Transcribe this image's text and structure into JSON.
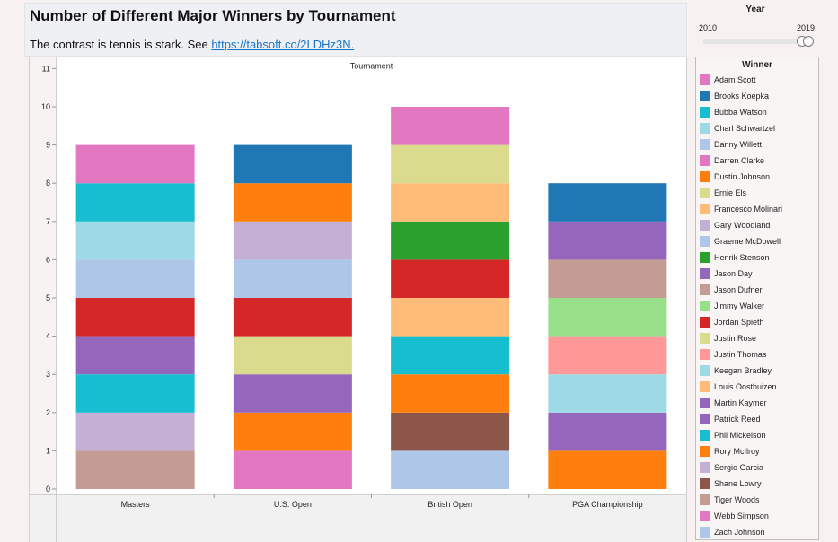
{
  "title": "Number of Different Major Winners by Tournament",
  "subtitle": {
    "text": "The contrast is tennis is stark. See ",
    "link": "https://tabsoft.co/2LDHz3N."
  },
  "year_filter": {
    "title": "Year",
    "min_label": "2010",
    "max_label": "2019",
    "range": [
      2010,
      2019
    ]
  },
  "legend": {
    "title": "Winner",
    "items": [
      {
        "name": "Adam Scott",
        "color": "#e377c2"
      },
      {
        "name": "Brooks Koepka",
        "color": "#1f77b4"
      },
      {
        "name": "Bubba Watson",
        "color": "#17becf"
      },
      {
        "name": "Charl Schwartzel",
        "color": "#9edae5"
      },
      {
        "name": "Danny Willett",
        "color": "#aec7e8"
      },
      {
        "name": "Darren Clarke",
        "color": "#e377c2"
      },
      {
        "name": "Dustin Johnson",
        "color": "#ff7f0e"
      },
      {
        "name": "Ernie Els",
        "color": "#dbdb8d"
      },
      {
        "name": "Francesco Molinari",
        "color": "#ffbb78"
      },
      {
        "name": "Gary Woodland",
        "color": "#c5b0d5"
      },
      {
        "name": "Graeme McDowell",
        "color": "#aec7e8"
      },
      {
        "name": "Henrik Stenson",
        "color": "#2ca02c"
      },
      {
        "name": "Jason Day",
        "color": "#9467bd"
      },
      {
        "name": "Jason Dufner",
        "color": "#c49c94"
      },
      {
        "name": "Jimmy Walker",
        "color": "#98df8a"
      },
      {
        "name": "Jordan Spieth",
        "color": "#d62728"
      },
      {
        "name": "Justin Rose",
        "color": "#dbdb8d"
      },
      {
        "name": "Justin Thomas",
        "color": "#ff9896"
      },
      {
        "name": "Keegan Bradley",
        "color": "#9edae5"
      },
      {
        "name": "Louis Oosthuizen",
        "color": "#ffbb78"
      },
      {
        "name": "Martin Kaymer",
        "color": "#9467bd"
      },
      {
        "name": "Patrick Reed",
        "color": "#9467bd"
      },
      {
        "name": "Phil Mickelson",
        "color": "#17becf"
      },
      {
        "name": "Rory McIlroy",
        "color": "#ff7f0e"
      },
      {
        "name": "Sergio Garcia",
        "color": "#c5b0d5"
      },
      {
        "name": "Shane Lowry",
        "color": "#8c564b"
      },
      {
        "name": "Tiger Woods",
        "color": "#c49c94"
      },
      {
        "name": "Webb Simpson",
        "color": "#e377c2"
      },
      {
        "name": "Zach Johnson",
        "color": "#aec7e8"
      }
    ]
  },
  "chart_data": {
    "type": "bar",
    "stacked": true,
    "title": "Number of Different Major Winners by Tournament",
    "column_header": "Tournament",
    "categories": [
      "Masters",
      "U.S. Open",
      "British Open",
      "PGA Championship"
    ],
    "values": [
      9,
      9,
      10,
      8
    ],
    "ylim": [
      0,
      11
    ],
    "yticks": [
      0,
      1,
      2,
      3,
      4,
      5,
      6,
      7,
      8,
      9,
      10,
      11
    ],
    "stacks": [
      {
        "category": "Masters",
        "segments": [
          {
            "winner": "Tiger Woods",
            "value": 1,
            "color": "#c49c94"
          },
          {
            "winner": "Sergio Garcia",
            "value": 1,
            "color": "#c5b0d5"
          },
          {
            "winner": "Phil Mickelson",
            "value": 1,
            "color": "#17becf"
          },
          {
            "winner": "Patrick Reed",
            "value": 1,
            "color": "#9467bd"
          },
          {
            "winner": "Jordan Spieth",
            "value": 1,
            "color": "#d62728"
          },
          {
            "winner": "Danny Willett",
            "value": 1,
            "color": "#aec7e8"
          },
          {
            "winner": "Charl Schwartzel",
            "value": 1,
            "color": "#9edae5"
          },
          {
            "winner": "Bubba Watson",
            "value": 1,
            "color": "#17becf"
          },
          {
            "winner": "Adam Scott",
            "value": 1,
            "color": "#e377c2"
          }
        ]
      },
      {
        "category": "U.S. Open",
        "segments": [
          {
            "winner": "Webb Simpson",
            "value": 1,
            "color": "#e377c2"
          },
          {
            "winner": "Rory McIlroy",
            "value": 1,
            "color": "#ff7f0e"
          },
          {
            "winner": "Martin Kaymer",
            "value": 1,
            "color": "#9467bd"
          },
          {
            "winner": "Justin Rose",
            "value": 1,
            "color": "#dbdb8d"
          },
          {
            "winner": "Jordan Spieth",
            "value": 1,
            "color": "#d62728"
          },
          {
            "winner": "Graeme McDowell",
            "value": 1,
            "color": "#aec7e8"
          },
          {
            "winner": "Gary Woodland",
            "value": 1,
            "color": "#c5b0d5"
          },
          {
            "winner": "Dustin Johnson",
            "value": 1,
            "color": "#ff7f0e"
          },
          {
            "winner": "Brooks Koepka",
            "value": 1,
            "color": "#1f77b4"
          }
        ]
      },
      {
        "category": "British Open",
        "segments": [
          {
            "winner": "Zach Johnson",
            "value": 1,
            "color": "#aec7e8"
          },
          {
            "winner": "Shane Lowry",
            "value": 1,
            "color": "#8c564b"
          },
          {
            "winner": "Rory McIlroy",
            "value": 1,
            "color": "#ff7f0e"
          },
          {
            "winner": "Phil Mickelson",
            "value": 1,
            "color": "#17becf"
          },
          {
            "winner": "Louis Oosthuizen",
            "value": 1,
            "color": "#ffbb78"
          },
          {
            "winner": "Jordan Spieth",
            "value": 1,
            "color": "#d62728"
          },
          {
            "winner": "Henrik Stenson",
            "value": 1,
            "color": "#2ca02c"
          },
          {
            "winner": "Francesco Molinari",
            "value": 1,
            "color": "#ffbb78"
          },
          {
            "winner": "Ernie Els",
            "value": 1,
            "color": "#dbdb8d"
          },
          {
            "winner": "Darren Clarke",
            "value": 1,
            "color": "#e377c2"
          }
        ]
      },
      {
        "category": "PGA Championship",
        "segments": [
          {
            "winner": "Rory McIlroy",
            "value": 1,
            "color": "#ff7f0e"
          },
          {
            "winner": "Martin Kaymer",
            "value": 1,
            "color": "#9467bd"
          },
          {
            "winner": "Keegan Bradley",
            "value": 1,
            "color": "#9edae5"
          },
          {
            "winner": "Justin Thomas",
            "value": 1,
            "color": "#ff9896"
          },
          {
            "winner": "Jimmy Walker",
            "value": 1,
            "color": "#98df8a"
          },
          {
            "winner": "Jason Dufner",
            "value": 1,
            "color": "#c49c94"
          },
          {
            "winner": "Jason Day",
            "value": 1,
            "color": "#9467bd"
          },
          {
            "winner": "Brooks Koepka",
            "value": 1,
            "color": "#1f77b4"
          }
        ]
      }
    ]
  }
}
